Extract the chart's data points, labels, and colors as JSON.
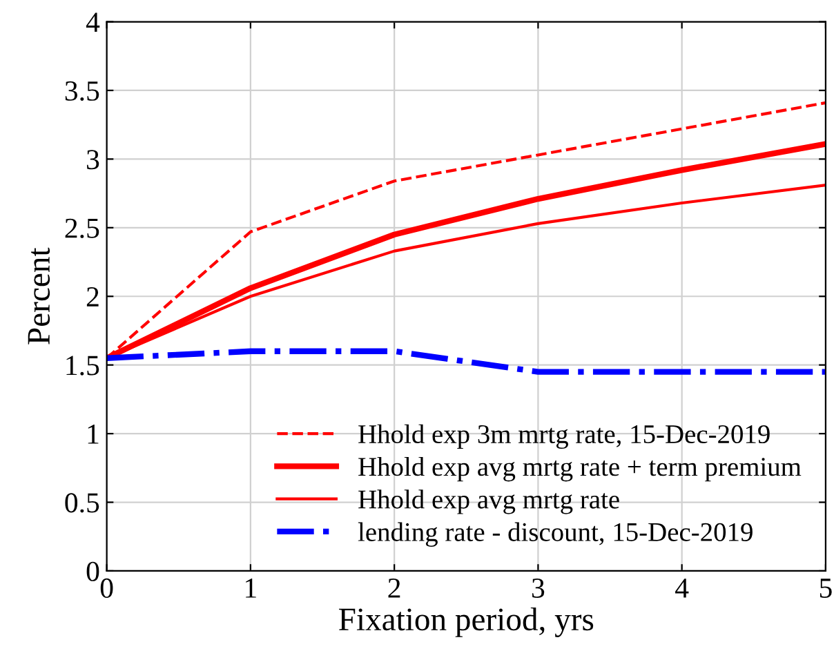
{
  "chart_data": {
    "type": "line",
    "xlabel": "Fixation period, yrs",
    "ylabel": "Percent",
    "x": [
      0,
      1,
      2,
      3,
      4,
      5
    ],
    "series": [
      {
        "name": "Hhold exp 3m mrtg rate, 15-Dec-2019",
        "color": "#ff0000",
        "line_style": "dashed",
        "values": [
          1.55,
          2.47,
          2.84,
          3.03,
          3.22,
          3.41
        ]
      },
      {
        "name": "Hhold exp avg mrtg rate + term premium",
        "color": "#ff0000",
        "line_style": "solid",
        "values": [
          1.55,
          2.06,
          2.45,
          2.71,
          2.92,
          3.11
        ]
      },
      {
        "name": "Hhold exp avg mrtg rate",
        "color": "#ff0000",
        "line_style": "solid",
        "values": [
          1.55,
          2.0,
          2.33,
          2.53,
          2.68,
          2.81
        ]
      },
      {
        "name": "lending rate - discount, 15-Dec-2019",
        "color": "#0000ff",
        "line_style": "dashdot",
        "values": [
          1.55,
          1.6,
          1.6,
          1.45,
          1.45,
          1.45
        ]
      }
    ],
    "xlim": [
      0,
      5
    ],
    "xticks": [
      0,
      1,
      2,
      3,
      4,
      5
    ],
    "ylim": [
      0,
      4
    ],
    "yticks": [
      0,
      0.5,
      1,
      1.5,
      2,
      2.5,
      3,
      3.5,
      4
    ],
    "grid": true,
    "legend": "bottom right",
    "marker": "none"
  }
}
